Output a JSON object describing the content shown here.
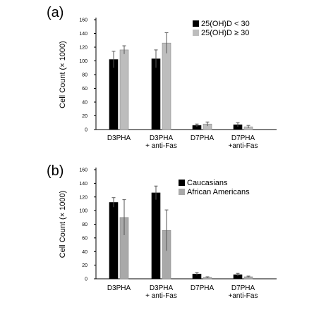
{
  "chart_data": [
    {
      "type": "bar",
      "panel_label": "(a)",
      "categories": [
        "D3PHA",
        "D3PHA\n+ anti-Fas",
        "D7PHA",
        "D7PHA\n+anti-Fas"
      ],
      "ylabel": "Cell Count (× 1000)",
      "ylim": [
        0,
        160
      ],
      "yticks": [
        0,
        20,
        40,
        60,
        80,
        100,
        120,
        140,
        160
      ],
      "legend_position": "top-right",
      "series": [
        {
          "name": "25(OH)D < 30",
          "color": "#000000",
          "values": [
            102,
            103,
            6,
            7
          ],
          "errors": [
            12,
            13,
            2,
            3
          ]
        },
        {
          "name": "25(OH)D ≥ 30",
          "color": "#bdbdbd",
          "values": [
            116,
            126,
            8,
            4
          ],
          "errors": [
            6,
            15,
            3,
            2
          ]
        }
      ]
    },
    {
      "type": "bar",
      "panel_label": "(b)",
      "categories": [
        "D3PHA",
        "D3PHA\n+ anti-Fas",
        "D7PHA",
        "D7PHA\n+anti-Fas"
      ],
      "ylabel": "Cell Count (× 1000)",
      "ylim": [
        0,
        160
      ],
      "yticks": [
        0,
        20,
        40,
        60,
        80,
        100,
        120,
        140,
        160
      ],
      "legend_position": "top-right",
      "series": [
        {
          "name": "Caucasians",
          "color": "#000000",
          "values": [
            112,
            126,
            7,
            6
          ],
          "errors": [
            7,
            10,
            2,
            2
          ]
        },
        {
          "name": "African Americans",
          "color": "#a9a9a9",
          "values": [
            90,
            71,
            2,
            3
          ],
          "errors": [
            26,
            30,
            1,
            1
          ]
        }
      ]
    }
  ]
}
